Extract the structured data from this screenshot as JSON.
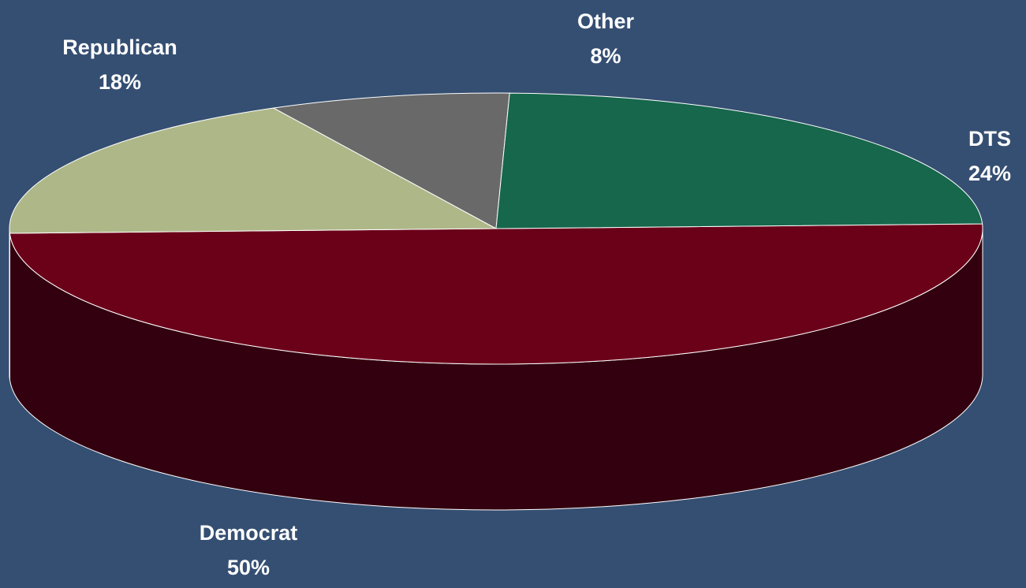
{
  "chart_data": {
    "type": "pie",
    "style": "3d",
    "start_angle_deg": -2,
    "slices": [
      {
        "label": "Democrat",
        "value": 50,
        "value_label": "50%",
        "color": "#6b0019",
        "side_color": "#33000f"
      },
      {
        "label": "Republican",
        "value": 18,
        "value_label": "18%",
        "color": "#aeb788",
        "side_color": "#6f7656"
      },
      {
        "label": "Other",
        "value": 8,
        "value_label": "8%",
        "color": "#696969",
        "side_color": "#3a3a3a"
      },
      {
        "label": "DTS",
        "value": 24,
        "value_label": "24%",
        "color": "#16674b",
        "side_color": "#0a3223"
      }
    ],
    "background": "#354f72",
    "outline_color": "#ffffff",
    "label_color": "#ffffff"
  }
}
